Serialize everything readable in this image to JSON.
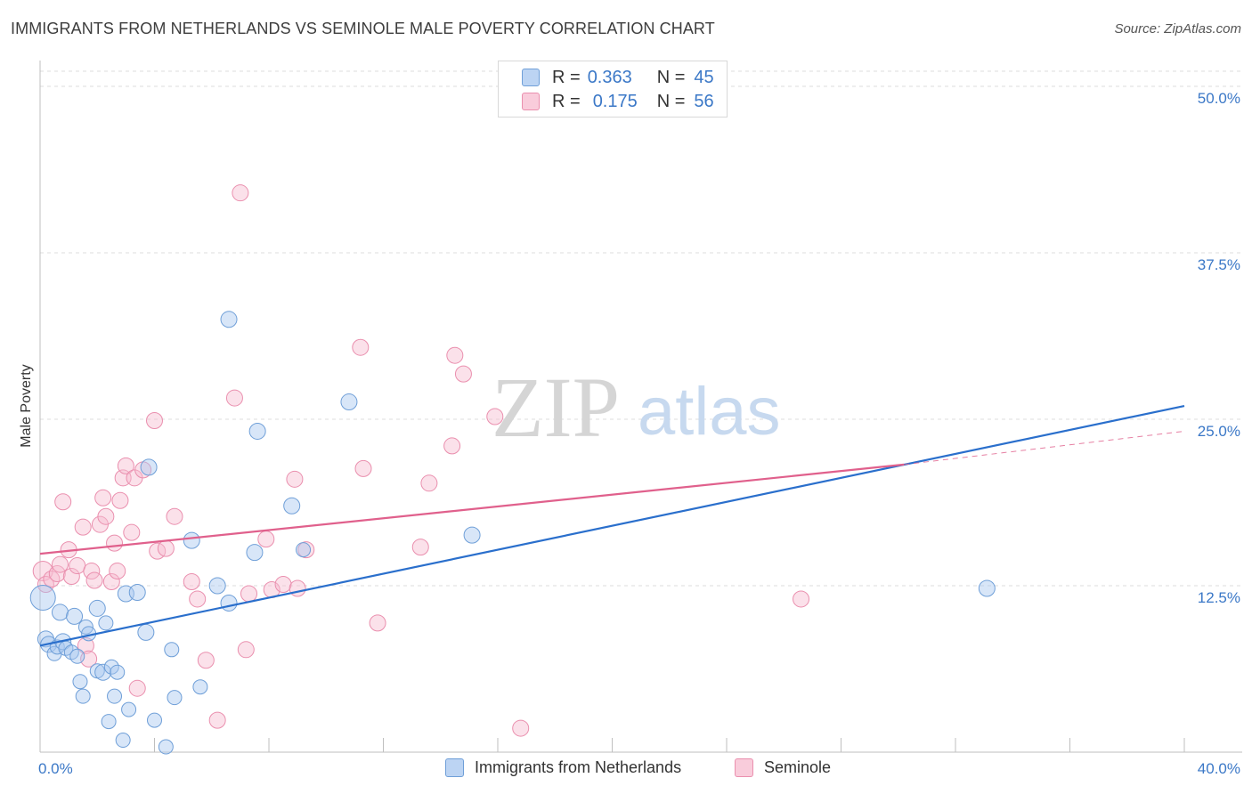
{
  "title": "IMMIGRANTS FROM NETHERLANDS VS SEMINOLE MALE POVERTY CORRELATION CHART",
  "source": "Source: ZipAtlas.com",
  "watermark": {
    "zip": "ZIP",
    "atlas": "atlas"
  },
  "colors": {
    "blue_fill": "#a9c8ef",
    "blue_stroke": "#6f9fd8",
    "blue_line": "#2a6fcc",
    "pink_fill": "#f6bcd0",
    "pink_stroke": "#ea8fae",
    "pink_line": "#e0608c",
    "tick_text": "#3b78c7",
    "grid": "#dcdcdc"
  },
  "legend": {
    "rows": [
      {
        "r_label": "R =",
        "r_value": "0.363",
        "n_label": "N =",
        "n_value": "45"
      },
      {
        "r_label": "R =",
        "r_value": "0.175",
        "n_label": "N =",
        "n_value": "56"
      }
    ]
  },
  "bottom_legend": {
    "series1": "Immigrants from Netherlands",
    "series2": "Seminole"
  },
  "chart_data": {
    "type": "scatter",
    "title": "IMMIGRANTS FROM NETHERLANDS VS SEMINOLE MALE POVERTY CORRELATION CHART",
    "xlabel": "",
    "ylabel": "Male Poverty",
    "xlim": [
      0,
      40
    ],
    "ylim": [
      0,
      50
    ],
    "x_tick_labels": [
      "0.0%",
      "40.0%"
    ],
    "y_ticks": [
      12.5,
      25.0,
      37.5,
      50.0
    ],
    "y_tick_labels": [
      "12.5%",
      "25.0%",
      "37.5%",
      "50.0%"
    ],
    "series": [
      {
        "name": "Immigrants from Netherlands",
        "R": 0.363,
        "N": 45,
        "trend": {
          "x0": 0,
          "y0": 8.0,
          "x1": 40,
          "y1": 26.0
        },
        "points": [
          [
            0.1,
            11.6,
            14
          ],
          [
            0.2,
            8.5,
            9
          ],
          [
            0.3,
            8.1,
            9
          ],
          [
            0.5,
            7.4,
            8
          ],
          [
            0.6,
            7.9,
            8
          ],
          [
            0.7,
            10.5,
            9
          ],
          [
            0.8,
            8.3,
            9
          ],
          [
            0.9,
            7.8,
            8
          ],
          [
            1.1,
            7.5,
            8
          ],
          [
            1.2,
            10.2,
            9
          ],
          [
            1.3,
            7.2,
            8
          ],
          [
            1.4,
            5.3,
            8
          ],
          [
            1.5,
            4.2,
            8
          ],
          [
            1.6,
            9.4,
            8
          ],
          [
            1.7,
            8.9,
            8
          ],
          [
            2.0,
            10.8,
            9
          ],
          [
            2.0,
            6.1,
            8
          ],
          [
            2.2,
            6.0,
            9
          ],
          [
            2.3,
            9.7,
            8
          ],
          [
            2.4,
            2.3,
            8
          ],
          [
            2.5,
            6.4,
            8
          ],
          [
            2.6,
            4.2,
            8
          ],
          [
            2.7,
            6.0,
            8
          ],
          [
            2.9,
            0.9,
            8
          ],
          [
            3.1,
            3.2,
            8
          ],
          [
            3.0,
            11.9,
            9
          ],
          [
            3.4,
            12.0,
            9
          ],
          [
            3.7,
            9.0,
            9
          ],
          [
            3.8,
            21.4,
            9
          ],
          [
            4.0,
            2.4,
            8
          ],
          [
            4.4,
            0.4,
            8
          ],
          [
            4.6,
            7.7,
            8
          ],
          [
            4.7,
            4.1,
            8
          ],
          [
            5.6,
            4.9,
            8
          ],
          [
            5.3,
            15.9,
            9
          ],
          [
            6.2,
            12.5,
            9
          ],
          [
            6.6,
            11.2,
            9
          ],
          [
            6.6,
            32.5,
            9
          ],
          [
            7.5,
            15.0,
            9
          ],
          [
            7.6,
            24.1,
            9
          ],
          [
            8.8,
            18.5,
            9
          ],
          [
            9.2,
            15.2,
            8
          ],
          [
            10.8,
            26.3,
            9
          ],
          [
            15.1,
            16.3,
            9
          ],
          [
            33.1,
            12.3,
            9
          ]
        ]
      },
      {
        "name": "Seminole",
        "R": 0.175,
        "N": 56,
        "trend": {
          "x0": 0,
          "y0": 14.9,
          "x1": 30.2,
          "y1": 21.6
        },
        "trend_dashed": {
          "x0": 30.2,
          "y0": 21.6,
          "x1": 40,
          "y1": 24.1
        },
        "points": [
          [
            0.1,
            13.6,
            11
          ],
          [
            0.2,
            12.6,
            9
          ],
          [
            0.4,
            13.0,
            9
          ],
          [
            0.6,
            13.4,
            9
          ],
          [
            0.7,
            14.1,
            9
          ],
          [
            0.8,
            18.8,
            9
          ],
          [
            1.0,
            15.2,
            9
          ],
          [
            1.1,
            13.2,
            9
          ],
          [
            1.3,
            14.0,
            9
          ],
          [
            1.5,
            16.9,
            9
          ],
          [
            1.6,
            8.0,
            9
          ],
          [
            1.7,
            7.0,
            9
          ],
          [
            1.8,
            13.6,
            9
          ],
          [
            1.9,
            12.9,
            9
          ],
          [
            2.1,
            17.1,
            9
          ],
          [
            2.2,
            19.1,
            9
          ],
          [
            2.3,
            17.7,
            9
          ],
          [
            2.5,
            12.8,
            9
          ],
          [
            2.6,
            15.7,
            9
          ],
          [
            2.7,
            13.6,
            9
          ],
          [
            2.8,
            18.9,
            9
          ],
          [
            2.9,
            20.6,
            9
          ],
          [
            3.0,
            21.5,
            9
          ],
          [
            3.2,
            16.5,
            9
          ],
          [
            3.3,
            20.6,
            9
          ],
          [
            3.4,
            4.8,
            9
          ],
          [
            3.6,
            21.2,
            9
          ],
          [
            4.0,
            24.9,
            9
          ],
          [
            4.1,
            15.1,
            9
          ],
          [
            4.4,
            15.3,
            9
          ],
          [
            4.7,
            17.7,
            9
          ],
          [
            5.3,
            12.8,
            9
          ],
          [
            5.5,
            11.5,
            9
          ],
          [
            5.8,
            6.9,
            9
          ],
          [
            6.2,
            2.4,
            9
          ],
          [
            6.8,
            26.6,
            9
          ],
          [
            7.0,
            42.0,
            9
          ],
          [
            7.2,
            7.7,
            9
          ],
          [
            7.3,
            11.9,
            9
          ],
          [
            7.9,
            16.0,
            9
          ],
          [
            8.1,
            12.2,
            9
          ],
          [
            8.5,
            12.6,
            9
          ],
          [
            8.9,
            20.5,
            9
          ],
          [
            9.0,
            12.3,
            9
          ],
          [
            9.3,
            15.2,
            9
          ],
          [
            11.2,
            30.4,
            9
          ],
          [
            11.3,
            21.3,
            9
          ],
          [
            11.8,
            9.7,
            9
          ],
          [
            13.3,
            15.4,
            9
          ],
          [
            13.6,
            20.2,
            9
          ],
          [
            14.5,
            29.8,
            9
          ],
          [
            14.8,
            28.4,
            9
          ],
          [
            14.4,
            23.0,
            9
          ],
          [
            15.9,
            25.2,
            9
          ],
          [
            16.8,
            1.8,
            9
          ],
          [
            26.6,
            11.5,
            9
          ]
        ]
      }
    ]
  }
}
